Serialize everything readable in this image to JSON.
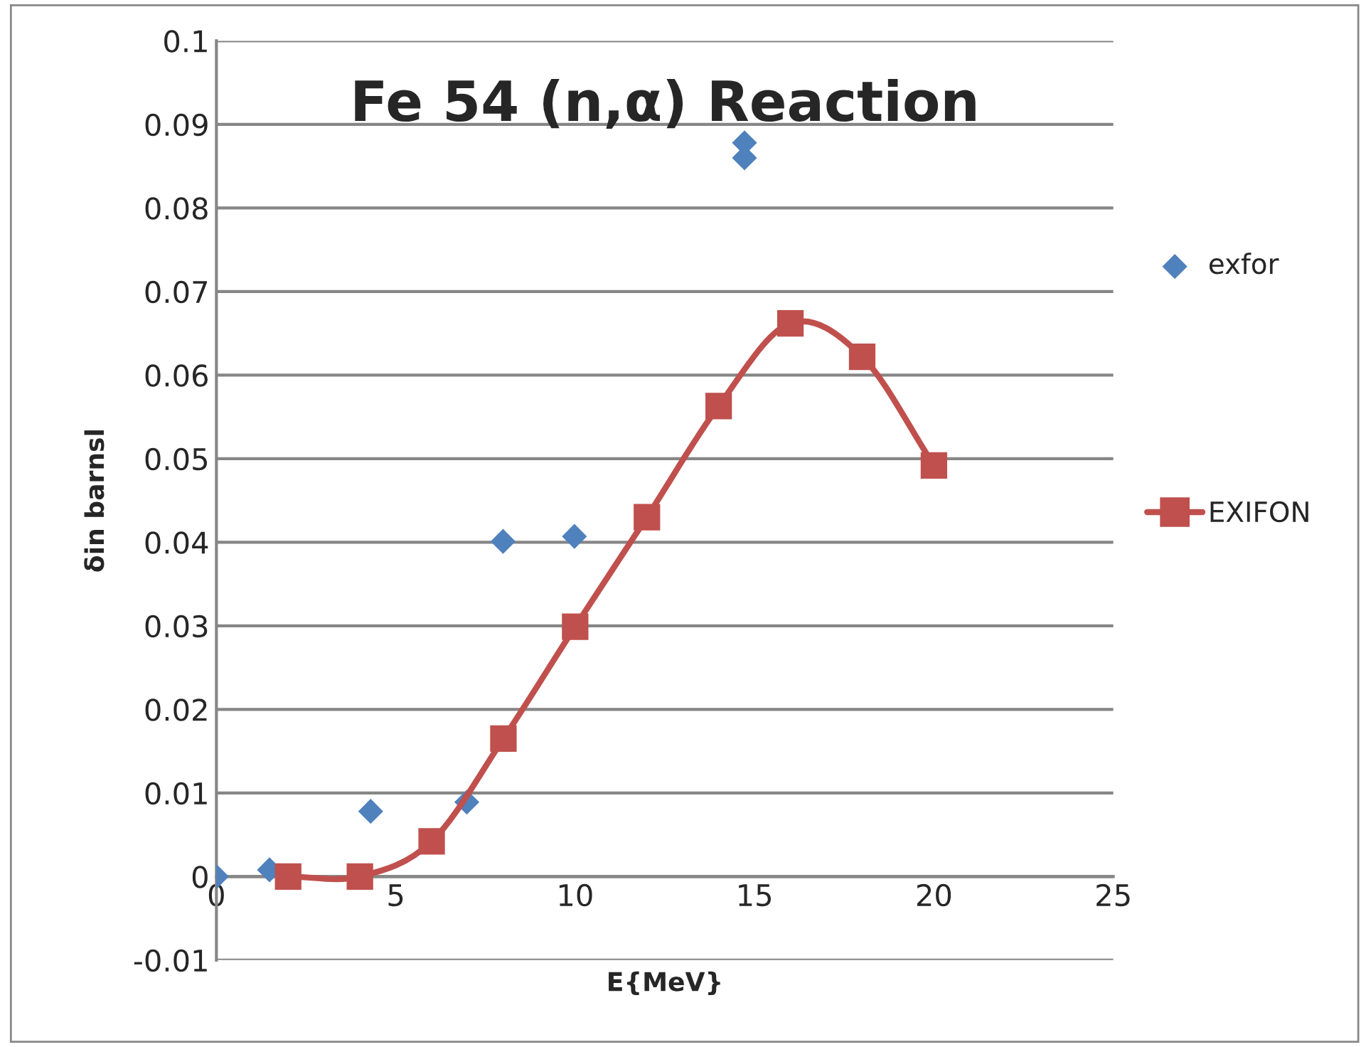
{
  "chart_data": {
    "type": "scatter",
    "title": "Fe 54 (n,α) Reaction",
    "xlabel": "E{MeV}",
    "ylabel": "δin barnsl",
    "xlim": [
      0,
      25
    ],
    "xticks": [
      0,
      5,
      10,
      15,
      20,
      25
    ],
    "ylim": [
      -0.01,
      0.1
    ],
    "yticks": [
      -0.01,
      0,
      0.01,
      0.02,
      0.03,
      0.04,
      0.05,
      0.06,
      0.07,
      0.08,
      0.09,
      0.1
    ],
    "grid": "y",
    "legend": "right",
    "series": [
      {
        "name": "exfor",
        "marker": "diamond",
        "color": "#4f81bd",
        "x": [
          0,
          1.48,
          4.3,
          6.98,
          7.99,
          9.98,
          14.72,
          14.72
        ],
        "values": [
          0,
          0.0008,
          0.0078,
          0.0089,
          0.0401,
          0.0407,
          0.0878,
          0.086
        ]
      },
      {
        "name": "EXIFON",
        "type": "line",
        "marker": "square",
        "color": "#c0504d",
        "line_style": "solid",
        "x": [
          2,
          4,
          6,
          8,
          10,
          12,
          14,
          16,
          18,
          20
        ],
        "values": [
          0,
          0,
          0.0042,
          0.0165,
          0.0299,
          0.043,
          0.0563,
          0.0662,
          0.0622,
          0.0492
        ]
      }
    ]
  }
}
